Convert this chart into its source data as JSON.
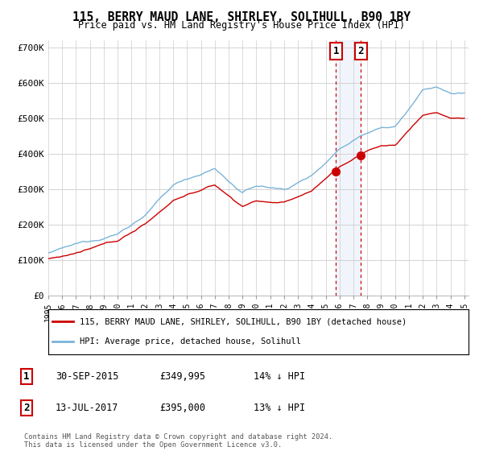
{
  "title": "115, BERRY MAUD LANE, SHIRLEY, SOLIHULL, B90 1BY",
  "subtitle": "Price paid vs. HM Land Registry's House Price Index (HPI)",
  "ylabel_ticks": [
    "£0",
    "£100K",
    "£200K",
    "£300K",
    "£400K",
    "£500K",
    "£600K",
    "£700K"
  ],
  "ylim": [
    0,
    720000
  ],
  "yticks": [
    0,
    100000,
    200000,
    300000,
    400000,
    500000,
    600000,
    700000
  ],
  "hpi_color": "#7ab4d8",
  "price_color": "#cc0000",
  "bg_shade_color": "#ddeeff",
  "sale1_year": 2015.75,
  "sale1_price": 349995,
  "sale2_year": 2017.54,
  "sale2_price": 395000,
  "sale1": {
    "label": "1",
    "date": "30-SEP-2015",
    "price": "£349,995",
    "hpi": "14% ↓ HPI",
    "year": 2015.75
  },
  "sale2": {
    "label": "2",
    "date": "13-JUL-2017",
    "price": "£395,000",
    "hpi": "13% ↓ HPI",
    "year": 2017.54
  },
  "legend_line1": "115, BERRY MAUD LANE, SHIRLEY, SOLIHULL, B90 1BY (detached house)",
  "legend_line2": "HPI: Average price, detached house, Solihull",
  "footnote": "Contains HM Land Registry data © Crown copyright and database right 2024.\nThis data is licensed under the Open Government Licence v3.0.",
  "start_year": 1995,
  "end_year": 2025
}
